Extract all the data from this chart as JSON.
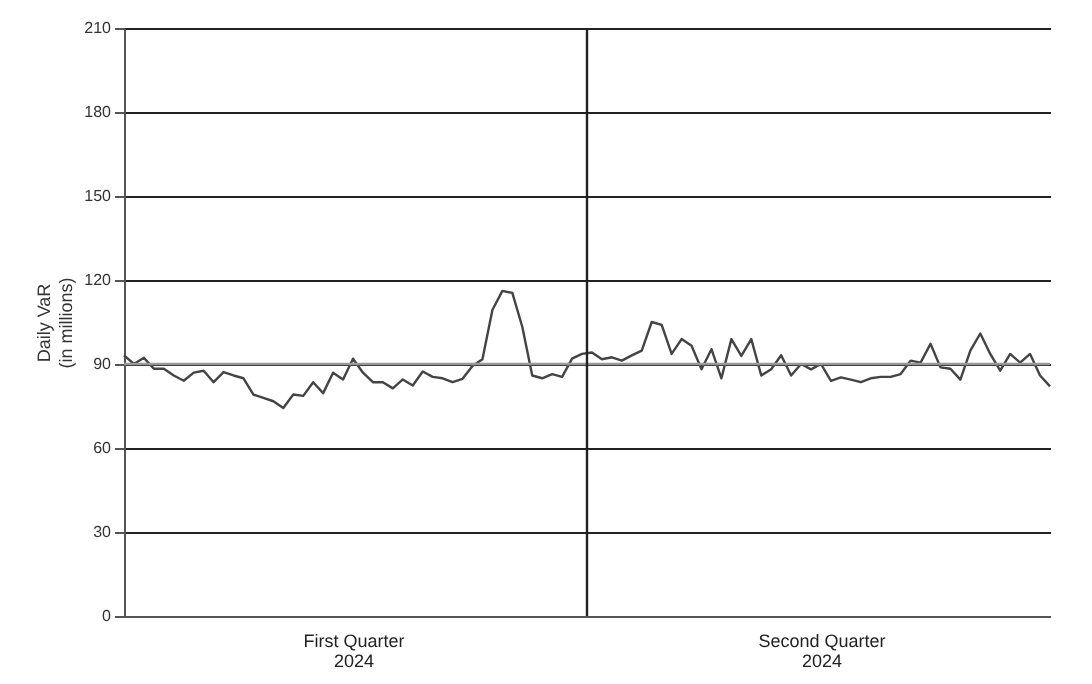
{
  "chart_data": {
    "type": "line",
    "ylabel": "Daily VaR\n(in millions)",
    "categories": [
      null,
      null,
      null,
      null,
      null,
      null,
      null,
      null,
      null,
      null,
      null,
      null,
      null,
      null,
      null,
      null,
      null,
      null,
      null,
      null,
      null,
      null,
      null,
      "First Quarter\n2024",
      null,
      null,
      null,
      null,
      null,
      null,
      null,
      null,
      null,
      null,
      null,
      null,
      null,
      null,
      null,
      null,
      null,
      null,
      null,
      null,
      null,
      null,
      null,
      null,
      null,
      null,
      null,
      null,
      null,
      null,
      null,
      null,
      null,
      null,
      null,
      null,
      null,
      null,
      null,
      null,
      null,
      null,
      null,
      null,
      null,
      null,
      "Second Quarter\n2024",
      null,
      null,
      null,
      null,
      null,
      null,
      null,
      null,
      null,
      null,
      null,
      null,
      null,
      null,
      null,
      null,
      null,
      null,
      null,
      null,
      null,
      null,
      null
    ],
    "ylim": [
      0,
      210
    ],
    "yticks": [
      0,
      30,
      60,
      90,
      120,
      150,
      180,
      210
    ],
    "grid": "y",
    "marker": "none",
    "line_style": "solid",
    "ref_lines": [
      {
        "axis": "y",
        "value": 90,
        "label": null,
        "color": "#999999"
      }
    ],
    "series": [
      {
        "color": "#444444",
        "values": [
          93.1,
          90,
          92.2,
          88.3,
          88.3,
          85.9,
          84,
          86.9,
          87.6,
          83.5,
          87.1,
          85.9,
          84.9,
          79.1,
          77.9,
          76.7,
          74.3,
          79.1,
          78.6,
          83.5,
          79.6,
          86.9,
          84.5,
          91.9,
          86.9,
          83.5,
          83.5,
          81.3,
          84.5,
          82.3,
          87.3,
          85.4,
          84.9,
          83.5,
          84.7,
          89.3,
          91.7,
          109.3,
          116.1,
          115.4,
          103.3,
          85.9,
          84.9,
          86.4,
          85.4,
          91.9,
          93.6,
          94.1,
          91.7,
          92.4,
          91.2,
          93.1,
          94.8,
          105,
          104,
          93.6,
          98.9,
          96.5,
          88.1,
          95.3,
          84.9,
          98.9,
          92.9,
          98.9,
          85.9,
          88.1,
          93.1,
          85.9,
          90,
          88.1,
          90,
          84,
          85.2,
          84.4,
          83.5,
          84.9,
          85.4,
          85.4,
          86.4,
          91.2,
          90.5,
          97.2,
          88.8,
          88.3,
          84.4,
          94.8,
          100.9,
          93.6,
          87.6,
          93.6,
          90.5,
          93.6,
          85.9,
          82
        ]
      }
    ]
  }
}
